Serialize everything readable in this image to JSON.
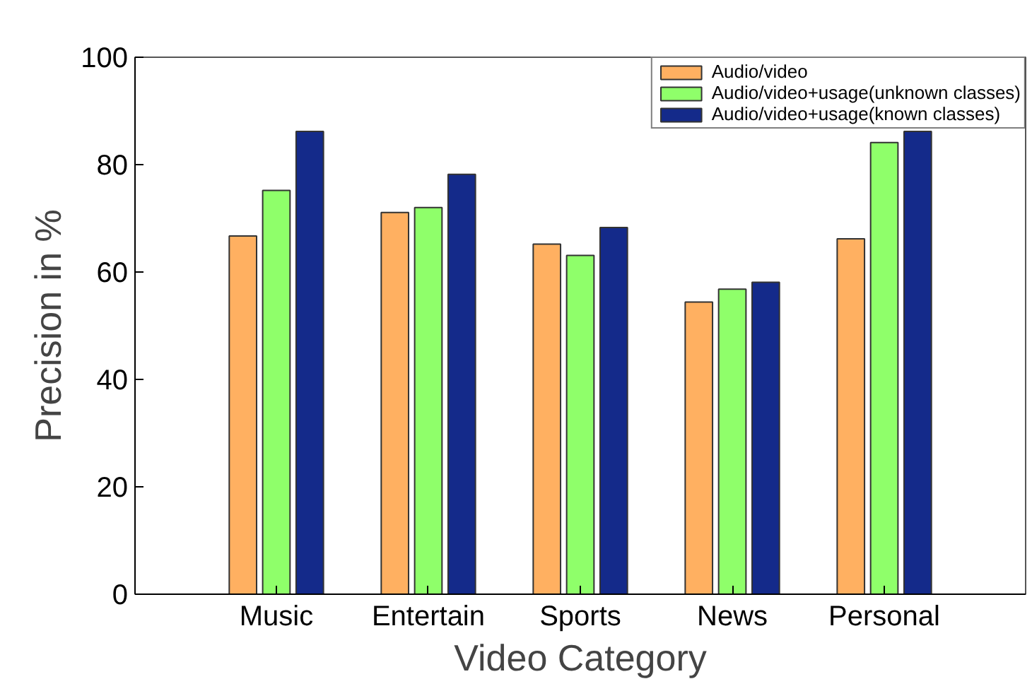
{
  "chart_data": {
    "type": "bar",
    "xlabel": "Video Category",
    "ylabel": "Precision in %",
    "categories": [
      "Music",
      "Entertain",
      "Sports",
      "News",
      "Personal"
    ],
    "series": [
      {
        "name": "Audio/video",
        "color": "#ffb061",
        "values": [
          66.7,
          71.1,
          65.2,
          54.4,
          66.2
        ]
      },
      {
        "name": "Audio/video+usage(unknown classes)",
        "color": "#8fff6a",
        "values": [
          75.2,
          72.0,
          63.1,
          56.8,
          84.1
        ]
      },
      {
        "name": "Audio/video+usage(known classes)",
        "color": "#142a8a",
        "values": [
          86.2,
          78.2,
          68.3,
          58.1,
          86.2
        ]
      }
    ],
    "ylim": [
      0,
      100
    ],
    "yticks": [
      0,
      20,
      40,
      60,
      80,
      100
    ],
    "grid": false,
    "legend": "top right"
  }
}
